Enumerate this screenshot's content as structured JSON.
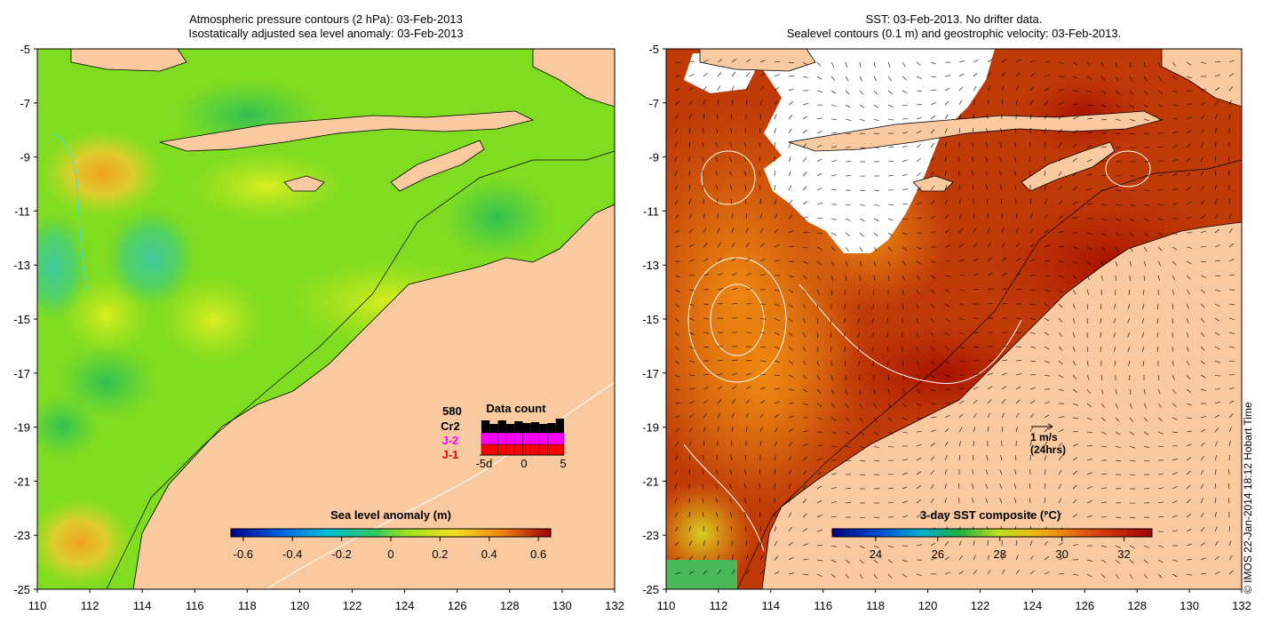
{
  "left_panel": {
    "title_line1": "Atmospheric pressure contours (2 hPa): 03-Feb-2013",
    "title_line2": "Isostatically adjusted sea level anomaly: 03-Feb-2013",
    "colorbar": {
      "title": "Sea level anomaly (m)",
      "ticks": [
        "-0.6",
        "-0.4",
        "-0.2",
        "0",
        "0.2",
        "0.4",
        "0.6"
      ]
    },
    "data_count": {
      "title": "Data count",
      "count": "580",
      "missions": [
        {
          "label": "Cr2",
          "color": "#000000"
        },
        {
          "label": "J-2",
          "color": "#ff00ff"
        },
        {
          "label": "J-1",
          "color": "#ff0000"
        }
      ],
      "xticks": [
        "-5d",
        "0",
        "5"
      ]
    }
  },
  "right_panel": {
    "title_line1": "SST: 03-Feb-2013. No drifter data.",
    "title_line2": "Sealevel contours (0.1 m) and geostrophic velocity: 03-Feb-2013.",
    "colorbar": {
      "title": "3-day SST composite (°C)",
      "ticks": [
        "24",
        "26",
        "28",
        "30",
        "32"
      ]
    },
    "velocity_legend": {
      "speed": "1 m/s",
      "period": "(24hrs)"
    }
  },
  "axes": {
    "x_ticks": [
      "110",
      "112",
      "114",
      "116",
      "118",
      "120",
      "122",
      "124",
      "126",
      "128",
      "130",
      "132"
    ],
    "y_ticks": [
      "-5",
      "-7",
      "-9",
      "-11",
      "-13",
      "-15",
      "-17",
      "-19",
      "-21",
      "-23",
      "-25"
    ]
  },
  "credit": "© IMOS 22-Jan-2014 18:12 Hobart Time",
  "colors": {
    "land": "#f9c9a0",
    "sla_mid": "#7fdc20",
    "sst_warm": "#c03a08"
  }
}
